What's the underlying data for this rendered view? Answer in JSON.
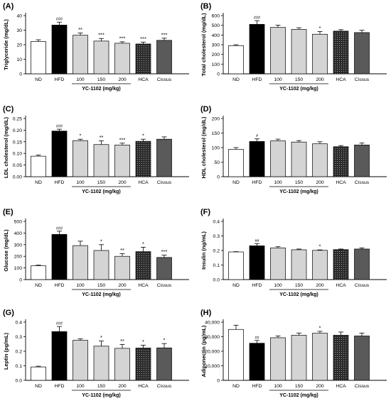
{
  "x_groups": [
    "ND",
    "HFD",
    "100",
    "150",
    "200",
    "HCA",
    "Cissus"
  ],
  "group_label": "YC-1102 (mg/kg)",
  "colors": {
    "ND": "#ffffff",
    "HFD": "#000000",
    "YC": "#d4d4d4",
    "HCA": "#2a2a2a",
    "Cissus": "#5a5a5a"
  },
  "chart_data": [
    {
      "type": "bar",
      "panel": "(A)",
      "ylabel": "Triglyceride (mg/dL)",
      "categories": [
        "ND",
        "HFD",
        "100",
        "150",
        "200",
        "HCA",
        "Cissus"
      ],
      "values": [
        22.2,
        33.5,
        26.5,
        22.5,
        21.0,
        20.5,
        23.0
      ],
      "errors": [
        1.2,
        2.0,
        1.6,
        1.8,
        1.0,
        1.3,
        1.5
      ],
      "annotations": [
        "",
        "###",
        "**",
        "***",
        "***",
        "***",
        "***"
      ],
      "ylim": [
        0,
        40
      ],
      "yticks": [
        "0",
        "10",
        "20",
        "30",
        "40"
      ],
      "ytick_values": [
        0,
        10,
        20,
        30,
        40
      ]
    },
    {
      "type": "bar",
      "panel": "(B)",
      "ylabel": "Total cholesterol (mg/dL)",
      "categories": [
        "ND",
        "HFD",
        "100",
        "150",
        "200",
        "HCA",
        "Cissus"
      ],
      "values": [
        290,
        510,
        478,
        458,
        408,
        440,
        425
      ],
      "errors": [
        10,
        38,
        24,
        17,
        28,
        15,
        24
      ],
      "annotations": [
        "",
        "###",
        "",
        "",
        "*",
        "",
        ""
      ],
      "ylim": [
        0,
        600
      ],
      "yticks": [
        "0",
        "100",
        "200",
        "300",
        "400",
        "500",
        "600"
      ],
      "ytick_values": [
        0,
        100,
        200,
        300,
        400,
        500,
        600
      ]
    },
    {
      "type": "bar",
      "panel": "(C)",
      "ylabel": "LDL cholesterol (mg/dL)",
      "categories": [
        "ND",
        "HFD",
        "100",
        "150",
        "200",
        "HCA",
        "Cissus"
      ],
      "values": [
        0.088,
        0.196,
        0.155,
        0.138,
        0.136,
        0.152,
        0.161
      ],
      "errors": [
        0.005,
        0.008,
        0.006,
        0.016,
        0.008,
        0.009,
        0.01
      ],
      "annotations": [
        "",
        "###",
        "*",
        "**",
        "***",
        "*",
        ""
      ],
      "ylim": [
        0,
        0.25
      ],
      "yticks": [
        "0.00",
        "0.05",
        "0.10",
        "0.15",
        "0.20",
        "0.25"
      ],
      "ytick_values": [
        0,
        0.05,
        0.1,
        0.15,
        0.2,
        0.25
      ]
    },
    {
      "type": "bar",
      "panel": "(D)",
      "ylabel": "HDL cholesterol (mg/dL)",
      "categories": [
        "ND",
        "HFD",
        "100",
        "150",
        "200",
        "HCA",
        "Cissus"
      ],
      "values": [
        94,
        121,
        123,
        119,
        113,
        103,
        109
      ],
      "errors": [
        6,
        9,
        6,
        5,
        7,
        4,
        7
      ],
      "annotations": [
        "",
        "#",
        "",
        "",
        "",
        "",
        ""
      ],
      "ylim": [
        0,
        200
      ],
      "yticks": [
        "0",
        "50",
        "100",
        "150",
        "200"
      ],
      "ytick_values": [
        0,
        50,
        100,
        150,
        200
      ]
    },
    {
      "type": "bar",
      "panel": "(E)",
      "ylabel": "Glucose (mg/dL)",
      "categories": [
        "ND",
        "HFD",
        "100",
        "150",
        "200",
        "HCA",
        "Cissus"
      ],
      "values": [
        118,
        388,
        292,
        250,
        200,
        240,
        190
      ],
      "errors": [
        6,
        28,
        38,
        50,
        22,
        38,
        20
      ],
      "annotations": [
        "",
        "###",
        "",
        "*",
        "**",
        "*",
        "***"
      ],
      "ylim": [
        0,
        500
      ],
      "yticks": [
        "0",
        "100",
        "200",
        "300",
        "400",
        "500"
      ],
      "ytick_values": [
        0,
        100,
        200,
        300,
        400,
        500
      ]
    },
    {
      "type": "bar",
      "panel": "(F)",
      "ylabel": "Insulin (ng/mL)",
      "categories": [
        "ND",
        "HFD",
        "100",
        "150",
        "200",
        "HCA",
        "Cissus"
      ],
      "values": [
        0.19,
        0.232,
        0.218,
        0.205,
        0.201,
        0.206,
        0.21
      ],
      "errors": [
        0.002,
        0.015,
        0.008,
        0.005,
        0.003,
        0.004,
        0.008
      ],
      "annotations": [
        "",
        "##",
        "",
        "",
        "*",
        "",
        ""
      ],
      "ylim": [
        0,
        0.4
      ],
      "yticks": [
        "0.0",
        "0.1",
        "0.2",
        "0.3",
        "0.4"
      ],
      "ytick_values": [
        0,
        0.1,
        0.2,
        0.3,
        0.4
      ]
    },
    {
      "type": "bar",
      "panel": "(G)",
      "ylabel": "Leptin (pg/mL)",
      "categories": [
        "ND",
        "HFD",
        "100",
        "150",
        "200",
        "HCA",
        "Cissus"
      ],
      "values": [
        0.092,
        0.335,
        0.275,
        0.235,
        0.22,
        0.222,
        0.223
      ],
      "errors": [
        0.005,
        0.035,
        0.01,
        0.035,
        0.027,
        0.02,
        0.03
      ],
      "annotations": [
        "",
        "###",
        "",
        "*",
        "**",
        "*",
        "*"
      ],
      "ylim": [
        0,
        0.4
      ],
      "yticks": [
        "0.0",
        "0.1",
        "0.2",
        "0.3",
        "0.4"
      ],
      "ytick_values": [
        0,
        0.1,
        0.2,
        0.3,
        0.4
      ]
    },
    {
      "type": "bar",
      "panel": "(H)",
      "ylabel": "Adiponectin (pg/mL)",
      "categories": [
        "ND",
        "HFD",
        "100",
        "150",
        "200",
        "HCA",
        "Cissus"
      ],
      "values": [
        35000,
        25500,
        29300,
        31000,
        32400,
        31000,
        30500
      ],
      "errors": [
        2900,
        1900,
        1200,
        1500,
        1300,
        2200,
        2000
      ],
      "annotations": [
        "",
        "##",
        "",
        "",
        "*",
        "",
        ""
      ],
      "ylim": [
        0,
        40000
      ],
      "yticks": [
        "0",
        "10,000",
        "20,000",
        "30,000",
        "40,000"
      ],
      "ytick_values": [
        0,
        10000,
        20000,
        30000,
        40000
      ]
    }
  ]
}
